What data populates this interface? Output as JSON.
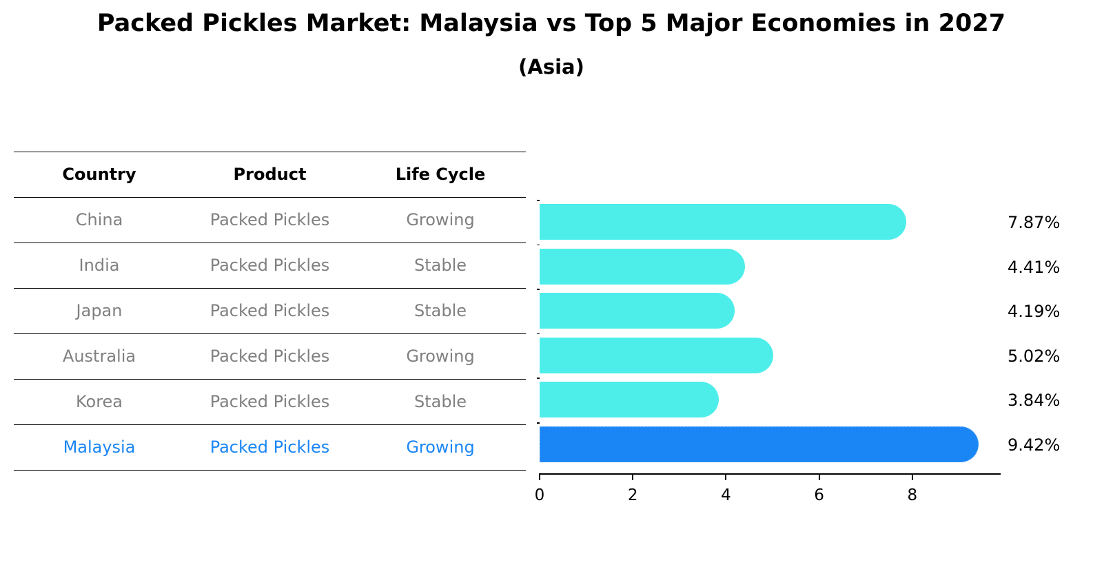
{
  "title": "Packed Pickles Market: Malaysia vs Top 5 Major Economies in 2027",
  "subtitle": "(Asia)",
  "colors": {
    "default_bar": "#4DEEEA",
    "highlight_bar": "#1A86F5",
    "default_text": "#808080",
    "highlight_text": "#1A86F5"
  },
  "table": {
    "headers": [
      "Country",
      "Product",
      "Life Cycle"
    ],
    "rows": [
      {
        "country": "China",
        "product": "Packed Pickles",
        "life_cycle": "Growing",
        "highlight": false
      },
      {
        "country": "India",
        "product": "Packed Pickles",
        "life_cycle": "Stable",
        "highlight": false
      },
      {
        "country": "Japan",
        "product": "Packed Pickles",
        "life_cycle": "Stable",
        "highlight": false
      },
      {
        "country": "Australia",
        "product": "Packed Pickles",
        "life_cycle": "Growing",
        "highlight": false
      },
      {
        "country": "Korea",
        "product": "Packed Pickles",
        "life_cycle": "Stable",
        "highlight": false
      },
      {
        "country": "Malaysia",
        "product": "Packed Pickles",
        "life_cycle": "Growing",
        "highlight": true
      }
    ]
  },
  "chart_data": {
    "type": "bar",
    "orientation": "horizontal",
    "title": "Packed Pickles Market: Malaysia vs Top 5 Major Economies in 2027",
    "subtitle": "(Asia)",
    "categories": [
      "China",
      "India",
      "Japan",
      "Australia",
      "Korea",
      "Malaysia"
    ],
    "values": [
      7.87,
      4.41,
      4.19,
      5.02,
      3.84,
      9.42
    ],
    "value_labels": [
      "7.87%",
      "4.41%",
      "4.19%",
      "5.02%",
      "3.84%",
      "9.42%"
    ],
    "highlight": "Malaysia",
    "xlabel": "",
    "ylabel": "",
    "xticks": [
      "0",
      "2",
      "4",
      "6",
      "8"
    ],
    "xlim": [
      0,
      9.9
    ],
    "grid": false,
    "legend": "none"
  }
}
